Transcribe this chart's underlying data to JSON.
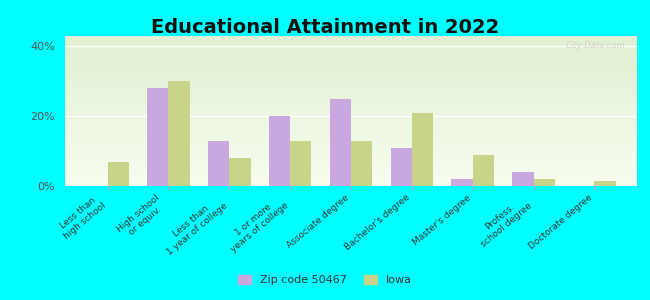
{
  "title": "Educational Attainment in 2022",
  "categories": [
    "Less than\nhigh school",
    "High school\nor equiv.",
    "Less than\n1 year of college",
    "1 or more\nyears of college",
    "Associate degree",
    "Bachelor's degree",
    "Master's degree",
    "Profess.\nschool degree",
    "Doctorate degree"
  ],
  "zip_values": [
    0,
    28,
    13,
    20,
    25,
    11,
    2,
    4,
    0
  ],
  "iowa_values": [
    7,
    30,
    8,
    13,
    13,
    21,
    9,
    2,
    1.5
  ],
  "zip_color": "#c9a8e0",
  "iowa_color": "#c8d48a",
  "bg_color": "#00ffff",
  "plot_bg": "#eaf2e0",
  "title_fontsize": 14,
  "tick_fontsize": 6.5,
  "legend_zip_label": "Zip code 50467",
  "legend_iowa_label": "Iowa",
  "ylim": [
    0,
    43
  ],
  "yticks": [
    0,
    20,
    40
  ],
  "ytick_labels": [
    "0%",
    "20%",
    "40%"
  ],
  "bar_width": 0.35,
  "watermark": "City-Data.com"
}
